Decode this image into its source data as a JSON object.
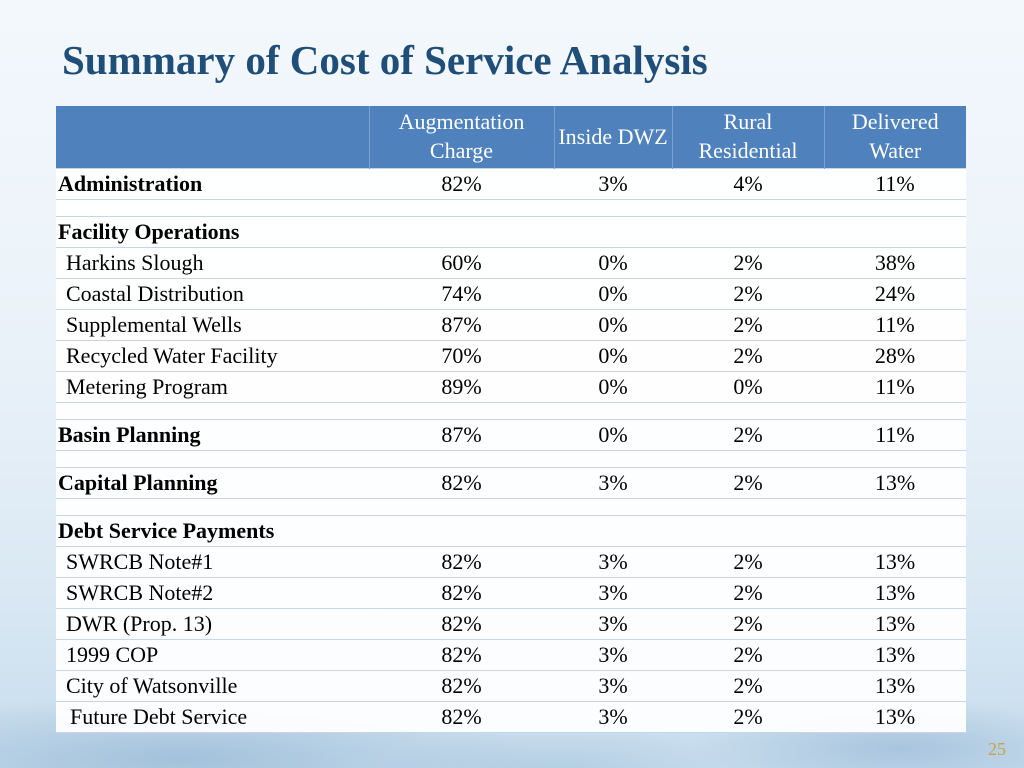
{
  "slide": {
    "title": "Summary of Cost of Service Analysis",
    "page_number": "25"
  },
  "table": {
    "headers": [
      "",
      "Augmentation Charge",
      "Inside DWZ",
      "Rural Residential",
      "Delivered Water"
    ],
    "rows": [
      {
        "type": "data",
        "style": "bold",
        "label": "Administration",
        "values": [
          "82%",
          "3%",
          "4%",
          "11%"
        ]
      },
      {
        "type": "spacer"
      },
      {
        "type": "section",
        "label": "Facility Operations"
      },
      {
        "type": "data",
        "style": "indent",
        "label": "Harkins Slough",
        "values": [
          "60%",
          "0%",
          "2%",
          "38%"
        ]
      },
      {
        "type": "data",
        "style": "indent",
        "label": "Coastal Distribution",
        "values": [
          "74%",
          "0%",
          "2%",
          "24%"
        ]
      },
      {
        "type": "data",
        "style": "indent",
        "label": "Supplemental Wells",
        "values": [
          "87%",
          "0%",
          "2%",
          "11%"
        ]
      },
      {
        "type": "data",
        "style": "indent",
        "label": "Recycled Water Facility",
        "values": [
          "70%",
          "0%",
          "2%",
          "28%"
        ]
      },
      {
        "type": "data",
        "style": "indent",
        "label": "Metering Program",
        "values": [
          "89%",
          "0%",
          "0%",
          "11%"
        ]
      },
      {
        "type": "spacer"
      },
      {
        "type": "data",
        "style": "bold",
        "label": "Basin Planning",
        "values": [
          "87%",
          "0%",
          "2%",
          "11%"
        ]
      },
      {
        "type": "spacer"
      },
      {
        "type": "data",
        "style": "bold",
        "label": "Capital Planning",
        "values": [
          "82%",
          "3%",
          "2%",
          "13%"
        ]
      },
      {
        "type": "spacer"
      },
      {
        "type": "section",
        "label": "Debt Service Payments"
      },
      {
        "type": "data",
        "style": "indent",
        "label": "SWRCB Note#1",
        "values": [
          "82%",
          "3%",
          "2%",
          "13%"
        ]
      },
      {
        "type": "data",
        "style": "indent",
        "label": "SWRCB Note#2",
        "values": [
          "82%",
          "3%",
          "2%",
          "13%"
        ]
      },
      {
        "type": "data",
        "style": "indent",
        "label": "DWR (Prop. 13)",
        "values": [
          "82%",
          "3%",
          "2%",
          "13%"
        ]
      },
      {
        "type": "data",
        "style": "indent",
        "label": "1999 COP",
        "values": [
          "82%",
          "3%",
          "2%",
          "13%"
        ]
      },
      {
        "type": "data",
        "style": "indent",
        "label": "City of Watsonville",
        "values": [
          "82%",
          "3%",
          "2%",
          "13%"
        ]
      },
      {
        "type": "data",
        "style": "indent2",
        "label": "Future Debt Service",
        "values": [
          "82%",
          "3%",
          "2%",
          "13%"
        ]
      }
    ]
  }
}
